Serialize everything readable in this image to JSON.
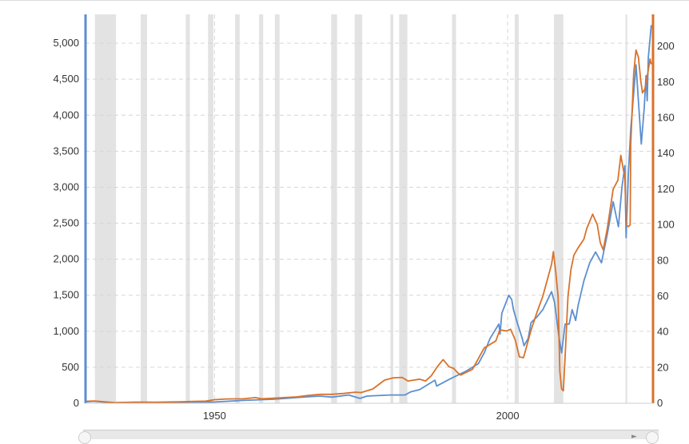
{
  "chart_data": {
    "type": "line",
    "title": "",
    "xlabel": "",
    "xlim": [
      1928,
      2024.8
    ],
    "x_ticks": [
      1950,
      2000
    ],
    "x_tick_labels": [
      "1950",
      "2000"
    ],
    "y_left": {
      "label": "",
      "lim": [
        0,
        5400
      ],
      "ticks": [
        0,
        500,
        1000,
        1500,
        2000,
        2500,
        3000,
        3500,
        4000,
        4500,
        5000
      ],
      "tick_labels": [
        "0",
        "500",
        "1,000",
        "1,500",
        "2,000",
        "2,500",
        "3,000",
        "3,500",
        "4,000",
        "4,500",
        "5,000"
      ]
    },
    "y_right": {
      "label": "",
      "lim": [
        0,
        218
      ],
      "ticks": [
        0,
        20,
        40,
        60,
        80,
        100,
        120,
        140,
        160,
        180,
        200
      ],
      "tick_labels": [
        "0",
        "20",
        "40",
        "60",
        "80",
        "100",
        "120",
        "140",
        "160",
        "180",
        "200"
      ]
    },
    "grid": true,
    "legend": "none",
    "recession_shading": [
      [
        1929.6,
        1933.2
      ],
      [
        1937.4,
        1938.5
      ],
      [
        1945.1,
        1945.8
      ],
      [
        1948.9,
        1949.8
      ],
      [
        1953.5,
        1954.3
      ],
      [
        1957.6,
        1958.3
      ],
      [
        1960.3,
        1961.1
      ],
      [
        1969.9,
        1970.9
      ],
      [
        1973.9,
        1975.2
      ],
      [
        1980.0,
        1980.5
      ],
      [
        1981.5,
        1982.9
      ],
      [
        1990.5,
        1991.2
      ],
      [
        2001.2,
        2001.9
      ],
      [
        2007.9,
        2009.5
      ],
      [
        2020.1,
        2020.4
      ]
    ],
    "series": [
      {
        "axis": "left",
        "color": "#5b8fd1",
        "points": [
          [
            1928,
            20
          ],
          [
            1929.6,
            28
          ],
          [
            1932.5,
            5
          ],
          [
            1937,
            15
          ],
          [
            1942,
            9
          ],
          [
            1946,
            17
          ],
          [
            1950,
            18
          ],
          [
            1955,
            40
          ],
          [
            1960,
            55
          ],
          [
            1965,
            85
          ],
          [
            1968,
            100
          ],
          [
            1970,
            85
          ],
          [
            1972.9,
            115
          ],
          [
            1974.8,
            68
          ],
          [
            1976,
            100
          ],
          [
            1980,
            115
          ],
          [
            1982.5,
            115
          ],
          [
            1983.5,
            160
          ],
          [
            1985,
            190
          ],
          [
            1987.6,
            320
          ],
          [
            1987.9,
            240
          ],
          [
            1990,
            330
          ],
          [
            1991,
            370
          ],
          [
            1993,
            450
          ],
          [
            1995,
            550
          ],
          [
            1996,
            700
          ],
          [
            1997,
            900
          ],
          [
            1998.5,
            1100
          ],
          [
            1998.7,
            960
          ],
          [
            1999,
            1250
          ],
          [
            2000.2,
            1500
          ],
          [
            2000.7,
            1440
          ],
          [
            2001,
            1300
          ],
          [
            2001.7,
            1100
          ],
          [
            2002.5,
            900
          ],
          [
            2002.8,
            800
          ],
          [
            2003.5,
            900
          ],
          [
            2004,
            1120
          ],
          [
            2005,
            1200
          ],
          [
            2006,
            1300
          ],
          [
            2007.5,
            1550
          ],
          [
            2008,
            1400
          ],
          [
            2008.8,
            900
          ],
          [
            2009.2,
            700
          ],
          [
            2009.8,
            1100
          ],
          [
            2010.5,
            1100
          ],
          [
            2011,
            1300
          ],
          [
            2011.6,
            1150
          ],
          [
            2012,
            1350
          ],
          [
            2013,
            1700
          ],
          [
            2014,
            1950
          ],
          [
            2015,
            2100
          ],
          [
            2016,
            1950
          ],
          [
            2017,
            2350
          ],
          [
            2018,
            2800
          ],
          [
            2018.9,
            2450
          ],
          [
            2019.5,
            3000
          ],
          [
            2020,
            3300
          ],
          [
            2020.2,
            2300
          ],
          [
            2020.6,
            3200
          ],
          [
            2021,
            3800
          ],
          [
            2021.9,
            4700
          ],
          [
            2022.3,
            4200
          ],
          [
            2022.8,
            3600
          ],
          [
            2023.3,
            4100
          ],
          [
            2023.6,
            4550
          ],
          [
            2023.8,
            4200
          ],
          [
            2024,
            4800
          ],
          [
            2024.5,
            5250
          ]
        ]
      },
      {
        "axis": "right",
        "color": "#d9722b",
        "points": [
          [
            1928,
            1.1
          ],
          [
            1929.5,
            1.3
          ],
          [
            1931,
            0.9
          ],
          [
            1933,
            0.4
          ],
          [
            1936,
            0.6
          ],
          [
            1938,
            0.6
          ],
          [
            1940,
            0.6
          ],
          [
            1944,
            0.8
          ],
          [
            1947,
            1.1
          ],
          [
            1948.5,
            1.2
          ],
          [
            1950,
            2.0
          ],
          [
            1952,
            2.4
          ],
          [
            1955,
            2.5
          ],
          [
            1957,
            3.2
          ],
          [
            1958,
            2.5
          ],
          [
            1960,
            2.8
          ],
          [
            1964,
            3.6
          ],
          [
            1966,
            4.4
          ],
          [
            1968,
            5.0
          ],
          [
            1970,
            5.0
          ],
          [
            1972,
            5.5
          ],
          [
            1974,
            6.2
          ],
          [
            1975,
            6.0
          ],
          [
            1977,
            8.0
          ],
          [
            1979,
            13.0
          ],
          [
            1980.5,
            14.3
          ],
          [
            1982,
            14.5
          ],
          [
            1983,
            12.5
          ],
          [
            1984,
            13.0
          ],
          [
            1985,
            13.5
          ],
          [
            1986,
            12.5
          ],
          [
            1987,
            15.5
          ],
          [
            1988,
            20.5
          ],
          [
            1989,
            24.5
          ],
          [
            1990,
            20.5
          ],
          [
            1990.8,
            19.5
          ],
          [
            1991.5,
            17.0
          ],
          [
            1992,
            15.8
          ],
          [
            1993,
            17.5
          ],
          [
            1994,
            19.0
          ],
          [
            1995,
            25.0
          ],
          [
            1996,
            31.0
          ],
          [
            1997,
            33.0
          ],
          [
            1998,
            35.0
          ],
          [
            1998.6,
            40.5
          ],
          [
            1999,
            41.0
          ],
          [
            1999.8,
            40.5
          ],
          [
            2000.5,
            41.5
          ],
          [
            2001.3,
            35.5
          ],
          [
            2002,
            26.0
          ],
          [
            2002.7,
            25.5
          ],
          [
            2003,
            29.0
          ],
          [
            2004,
            41.0
          ],
          [
            2005,
            51.0
          ],
          [
            2006,
            60.0
          ],
          [
            2007.5,
            78.0
          ],
          [
            2007.8,
            85.0
          ],
          [
            2008.2,
            74.0
          ],
          [
            2008.6,
            60.0
          ],
          [
            2008.9,
            18.0
          ],
          [
            2009.2,
            8.0
          ],
          [
            2009.5,
            7.0
          ],
          [
            2009.8,
            26.0
          ],
          [
            2010.3,
            60.0
          ],
          [
            2010.8,
            75.0
          ],
          [
            2011.3,
            83.0
          ],
          [
            2012,
            87.0
          ],
          [
            2013,
            92.0
          ],
          [
            2013.5,
            98.0
          ],
          [
            2014.5,
            106.0
          ],
          [
            2015.3,
            100.0
          ],
          [
            2015.8,
            90.0
          ],
          [
            2016.3,
            86.0
          ],
          [
            2017,
            98.0
          ],
          [
            2018,
            120.0
          ],
          [
            2018.8,
            125.0
          ],
          [
            2019.3,
            139.0
          ],
          [
            2019.8,
            130.0
          ],
          [
            2020,
            127.0
          ],
          [
            2020.2,
            100.0
          ],
          [
            2020.6,
            99.0
          ],
          [
            2020.9,
            100.0
          ],
          [
            2021,
            145.0
          ],
          [
            2021.5,
            185.0
          ],
          [
            2021.9,
            198.0
          ],
          [
            2022.3,
            194.0
          ],
          [
            2022.7,
            181.0
          ],
          [
            2023,
            174.0
          ],
          [
            2023.4,
            176.0
          ],
          [
            2023.8,
            183.0
          ],
          [
            2024.3,
            193.0
          ],
          [
            2024.5,
            190.0
          ]
        ]
      }
    ]
  },
  "navigator": {
    "right_arrow": "►"
  }
}
